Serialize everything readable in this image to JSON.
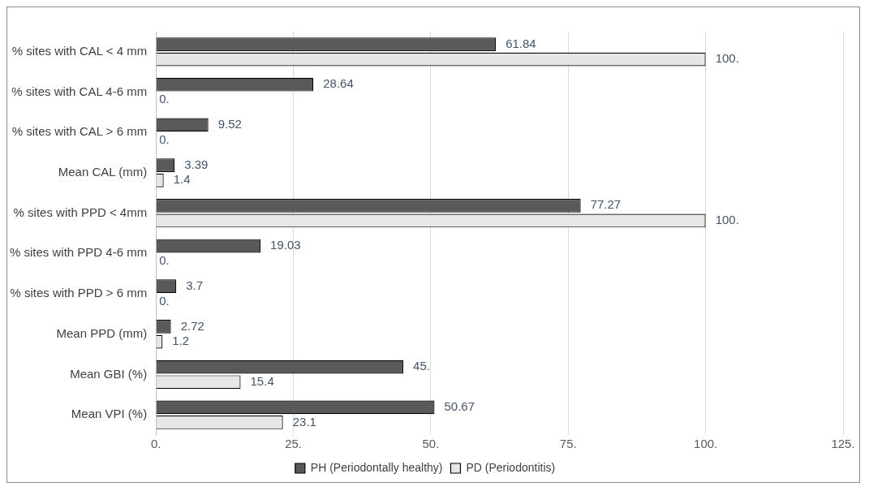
{
  "chart_data": {
    "type": "bar",
    "orientation": "horizontal",
    "categories": [
      "% sites with CAL < 4 mm",
      "% sites with CAL 4-6 mm",
      "% sites with CAL > 6 mm",
      "Mean CAL (mm)",
      "% sites with PPD < 4mm",
      "% sites with PPD 4-6 mm",
      "% sites with PPD > 6 mm",
      "Mean PPD (mm)",
      "Mean GBI (%)",
      "Mean VPI (%)"
    ],
    "series": [
      {
        "name": "PH (Periodontally healthy)",
        "color": "#595959",
        "values": [
          61.84,
          28.64,
          9.52,
          3.39,
          77.27,
          19.03,
          3.7,
          2.72,
          45,
          50.67
        ],
        "value_labels": [
          "61.84",
          "28.64",
          "9.52",
          "3.39",
          "77.27",
          "19.03",
          "3.7",
          "2.72",
          "45.",
          "50.67"
        ]
      },
      {
        "name": "PD (Periodontitis)",
        "color": "#e7e6e6",
        "values": [
          100,
          0,
          0,
          1.4,
          100,
          0,
          0,
          1.2,
          15.4,
          23.1
        ],
        "value_labels": [
          "100.",
          "0.",
          "0.",
          "1.4",
          "100.",
          "0.",
          "0.",
          "1.2",
          "15.4",
          "23.1"
        ]
      }
    ],
    "xlim": [
      0,
      125
    ],
    "xticks": [
      {
        "value": 0,
        "label": "0."
      },
      {
        "value": 25,
        "label": "25."
      },
      {
        "value": 50,
        "label": "50."
      },
      {
        "value": 75,
        "label": "75."
      },
      {
        "value": 100,
        "label": "100."
      },
      {
        "value": 125,
        "label": "125."
      }
    ],
    "grid": "x",
    "legend": "bottom"
  }
}
